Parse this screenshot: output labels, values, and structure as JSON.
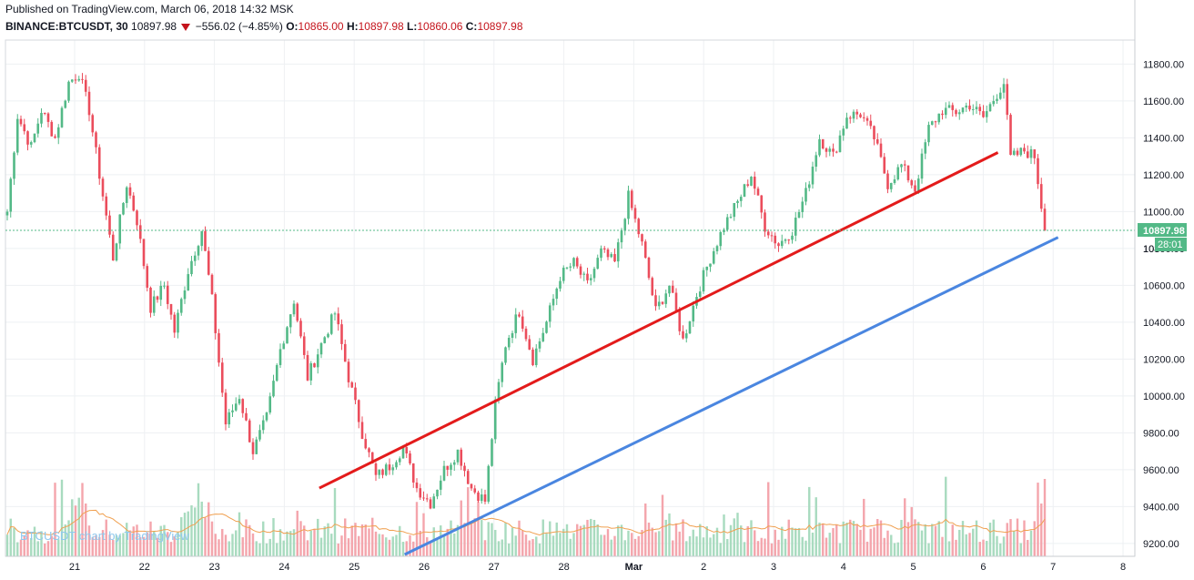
{
  "header": {
    "published": "Published on TradingView.com, March 06, 2018 14:32 MSK",
    "symbol": "BINANCE:BTCUSDT, 30",
    "last": "10897.98",
    "change": "−556.02 (−4.85%)",
    "o_label": "O:",
    "o_value": "10865.00",
    "h_label": "H:",
    "h_value": "10897.98",
    "l_label": "L:",
    "l_value": "10860.06",
    "c_label": "C:",
    "c_value": "10897.98"
  },
  "watermark": "BTCUSDT chart by TradingView",
  "price_badge": "10897.98",
  "countdown_badge": "28:01",
  "partial_tick": "108",
  "colors": {
    "up": "#53b987",
    "down": "#eb4d5c",
    "vol_up": "#a8dbbf",
    "vol_down": "#f4a5ac",
    "red_line": "#e31b1b",
    "blue_line": "#4a86e0",
    "ma": "#f0a050",
    "badge": "#53b987",
    "grid": "#eef0f3"
  },
  "chart_data": {
    "type": "candlestick",
    "y_ticks": [
      "11800.00",
      "11600.00",
      "11400.00",
      "11200.00",
      "11000.00",
      "10800.00",
      "10600.00",
      "10400.00",
      "10200.00",
      "10000.00",
      "9800.00",
      "9600.00",
      "9400.00",
      "9200.00"
    ],
    "y_tick_values": [
      11800,
      11600,
      11400,
      11200,
      11000,
      10800,
      10600,
      10400,
      10200,
      10000,
      9800,
      9600,
      9400,
      9200
    ],
    "ylim": [
      9130,
      11930
    ],
    "x_ticks": [
      "21",
      "22",
      "23",
      "24",
      "25",
      "26",
      "27",
      "28",
      "Mar",
      "2",
      "3",
      "4",
      "5",
      "6",
      "7",
      "8"
    ],
    "last_price": 10897.98,
    "anchors": [
      [
        0,
        11000
      ],
      [
        3,
        11520
      ],
      [
        7,
        11350
      ],
      [
        10,
        11550
      ],
      [
        14,
        11400
      ],
      [
        18,
        11700
      ],
      [
        21,
        11750
      ],
      [
        24,
        11550
      ],
      [
        27,
        11200
      ],
      [
        31,
        10750
      ],
      [
        35,
        11150
      ],
      [
        38,
        10950
      ],
      [
        42,
        10480
      ],
      [
        46,
        10600
      ],
      [
        49,
        10350
      ],
      [
        53,
        10680
      ],
      [
        57,
        10900
      ],
      [
        60,
        10520
      ],
      [
        64,
        9850
      ],
      [
        68,
        10000
      ],
      [
        72,
        9700
      ],
      [
        76,
        9880
      ],
      [
        80,
        10250
      ],
      [
        84,
        10520
      ],
      [
        88,
        10100
      ],
      [
        92,
        10280
      ],
      [
        96,
        10450
      ],
      [
        100,
        10100
      ],
      [
        104,
        9800
      ],
      [
        108,
        9560
      ],
      [
        112,
        9620
      ],
      [
        116,
        9720
      ],
      [
        120,
        9500
      ],
      [
        124,
        9420
      ],
      [
        128,
        9600
      ],
      [
        132,
        9700
      ],
      [
        136,
        9500
      ],
      [
        140,
        9430
      ],
      [
        143,
        9950
      ],
      [
        146,
        10280
      ],
      [
        150,
        10460
      ],
      [
        154,
        10200
      ],
      [
        158,
        10400
      ],
      [
        162,
        10650
      ],
      [
        166,
        10720
      ],
      [
        170,
        10600
      ],
      [
        174,
        10780
      ],
      [
        178,
        10720
      ],
      [
        182,
        11080
      ],
      [
        186,
        10820
      ],
      [
        190,
        10460
      ],
      [
        194,
        10600
      ],
      [
        198,
        10300
      ],
      [
        202,
        10550
      ],
      [
        206,
        10750
      ],
      [
        210,
        10920
      ],
      [
        214,
        11050
      ],
      [
        218,
        11200
      ],
      [
        222,
        10920
      ],
      [
        226,
        10820
      ],
      [
        230,
        10900
      ],
      [
        234,
        11100
      ],
      [
        238,
        11400
      ],
      [
        242,
        11300
      ],
      [
        246,
        11520
      ],
      [
        250,
        11530
      ],
      [
        254,
        11400
      ],
      [
        258,
        11150
      ],
      [
        262,
        11250
      ],
      [
        266,
        11120
      ],
      [
        270,
        11450
      ],
      [
        274,
        11550
      ],
      [
        278,
        11540
      ],
      [
        282,
        11580
      ],
      [
        286,
        11510
      ],
      [
        290,
        11640
      ],
      [
        292,
        11700
      ],
      [
        294,
        11290
      ],
      [
        298,
        11330
      ],
      [
        301,
        11300
      ],
      [
        304,
        10900
      ]
    ],
    "bar_count": 305,
    "trendlines": [
      {
        "name": "red",
        "from": [
          22.3,
          9500
        ],
        "to": [
          70.8,
          11320
        ]
      },
      {
        "name": "blue",
        "from": [
          28.4,
          9140
        ],
        "to": [
          75.1,
          10860
        ]
      }
    ]
  }
}
